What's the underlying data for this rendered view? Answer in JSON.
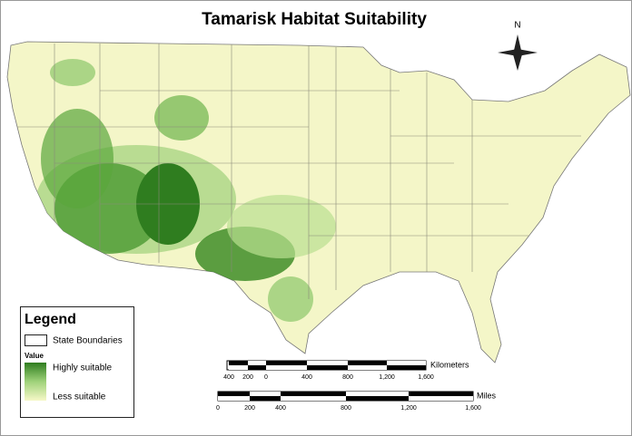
{
  "title": "Tamarisk Habitat Suitability",
  "north_label": "N",
  "legend": {
    "title": "Legend",
    "boundary_label": "State Boundaries",
    "value_heading": "Value",
    "high_label": "Highly suitable",
    "low_label": "Less suitable"
  },
  "scale_km": {
    "unit": "Kilometers",
    "ticks": [
      "400",
      "200",
      "0",
      "400",
      "800",
      "1,200",
      "1,600"
    ]
  },
  "scale_miles": {
    "unit": "Miles",
    "ticks": [
      "0",
      "200",
      "400",
      "800",
      "1,200",
      "1,600"
    ]
  }
}
